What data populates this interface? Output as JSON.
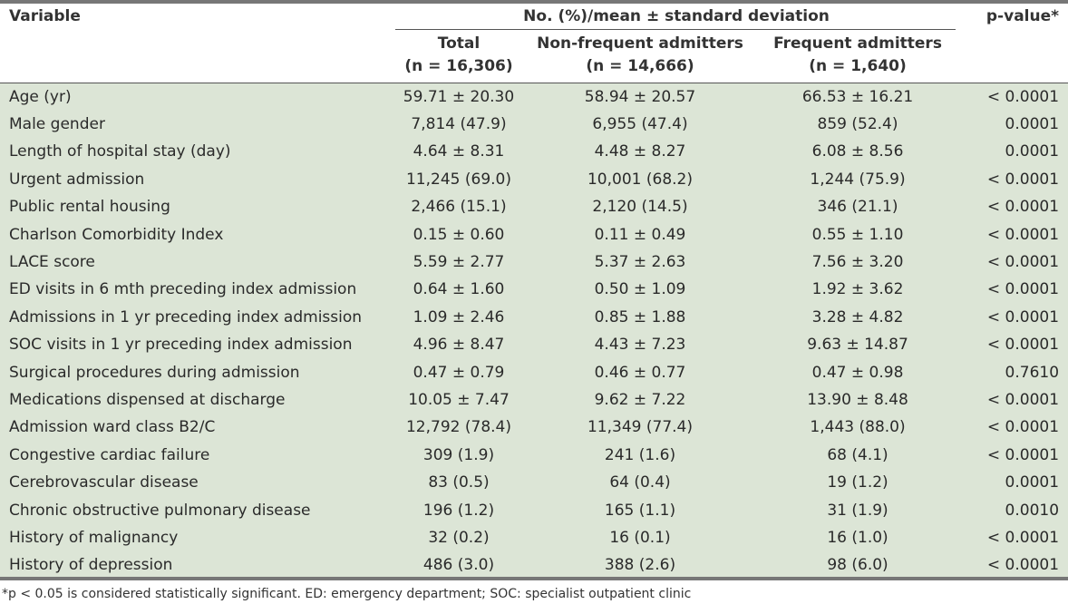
{
  "header": {
    "variable": "Variable",
    "group": "No. (%)/mean ± standard deviation",
    "pvalue": "p-value*",
    "total_line1": "Total",
    "total_line2": "(n = 16,306)",
    "nonfreq_line1": "Non-frequent admitters",
    "nonfreq_line2": "(n = 14,666)",
    "freq_line1": "Frequent admitters",
    "freq_line2": "(n = 1,640)"
  },
  "rows": [
    {
      "variable": "Age (yr)",
      "total": "59.71 ± 20.30",
      "nonfreq": "58.94 ± 20.57",
      "freq": "66.53 ± 16.21",
      "p": "< 0.0001"
    },
    {
      "variable": "Male gender",
      "total": "7,814 (47.9)",
      "nonfreq": "6,955 (47.4)",
      "freq": "859 (52.4)",
      "p": "0.0001"
    },
    {
      "variable": "Length of hospital stay (day)",
      "total": "4.64 ± 8.31",
      "nonfreq": "4.48 ± 8.27",
      "freq": "6.08 ± 8.56",
      "p": "0.0001"
    },
    {
      "variable": "Urgent admission",
      "total": "11,245 (69.0)",
      "nonfreq": "10,001 (68.2)",
      "freq": "1,244 (75.9)",
      "p": "< 0.0001"
    },
    {
      "variable": "Public rental housing",
      "total": "2,466 (15.1)",
      "nonfreq": "2,120 (14.5)",
      "freq": "346 (21.1)",
      "p": "< 0.0001"
    },
    {
      "variable": "Charlson Comorbidity Index",
      "total": "0.15 ± 0.60",
      "nonfreq": "0.11 ± 0.49",
      "freq": "0.55 ± 1.10",
      "p": "< 0.0001"
    },
    {
      "variable": "LACE score",
      "total": "5.59 ± 2.77",
      "nonfreq": "5.37 ± 2.63",
      "freq": "7.56 ± 3.20",
      "p": "< 0.0001"
    },
    {
      "variable": "ED visits in 6 mth preceding index admission",
      "total": "0.64 ± 1.60",
      "nonfreq": "0.50 ± 1.09",
      "freq": "1.92 ± 3.62",
      "p": "< 0.0001"
    },
    {
      "variable": "Admissions in 1 yr preceding index admission",
      "total": "1.09 ± 2.46",
      "nonfreq": "0.85 ± 1.88",
      "freq": "3.28 ± 4.82",
      "p": "< 0.0001"
    },
    {
      "variable": "SOC visits in 1 yr preceding index admission",
      "total": "4.96 ± 8.47",
      "nonfreq": "4.43 ± 7.23",
      "freq": "9.63 ± 14.87",
      "p": "< 0.0001"
    },
    {
      "variable": "Surgical procedures during admission",
      "total": "0.47 ± 0.79",
      "nonfreq": "0.46 ± 0.77",
      "freq": "0.47 ± 0.98",
      "p": "0.7610"
    },
    {
      "variable": "Medications dispensed at discharge",
      "total": "10.05 ± 7.47",
      "nonfreq": "9.62 ± 7.22",
      "freq": "13.90 ± 8.48",
      "p": "< 0.0001"
    },
    {
      "variable": "Admission ward class B2/C",
      "total": "12,792 (78.4)",
      "nonfreq": "11,349 (77.4)",
      "freq": "1,443 (88.0)",
      "p": "< 0.0001"
    },
    {
      "variable": "Congestive cardiac failure",
      "total": "309 (1.9)",
      "nonfreq": "241 (1.6)",
      "freq": "68 (4.1)",
      "p": "< 0.0001"
    },
    {
      "variable": "Cerebrovascular disease",
      "total": "83 (0.5)",
      "nonfreq": "64 (0.4)",
      "freq": "19 (1.2)",
      "p": "0.0001"
    },
    {
      "variable": "Chronic obstructive pulmonary disease",
      "total": "196 (1.2)",
      "nonfreq": "165 (1.1)",
      "freq": "31 (1.9)",
      "p": "0.0010"
    },
    {
      "variable": "History of malignancy",
      "total": "32 (0.2)",
      "nonfreq": "16 (0.1)",
      "freq": "16 (1.0)",
      "p": "< 0.0001"
    },
    {
      "variable": "History of depression",
      "total": "486 (3.0)",
      "nonfreq": "388 (2.6)",
      "freq": "98 (6.0)",
      "p": "< 0.0001"
    }
  ],
  "footnote": "*p < 0.05 is considered statistically significant. ED: emergency department; SOC: specialist outpatient clinic",
  "colors": {
    "row_background": "#dce5d6",
    "rule": "#777777"
  }
}
